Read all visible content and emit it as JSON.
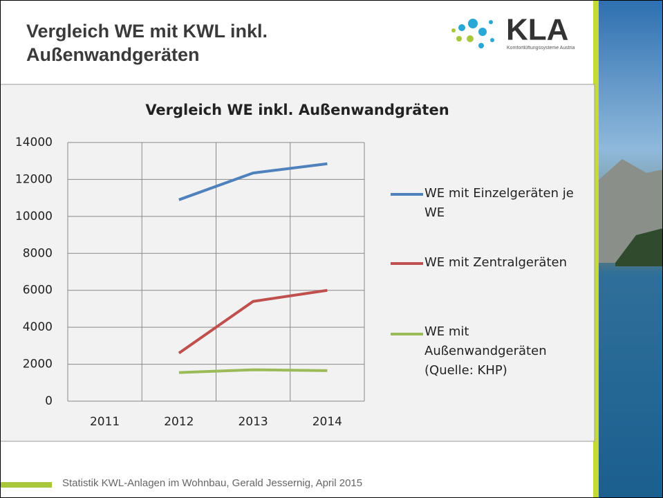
{
  "slide": {
    "title": "Vergleich WE mit KWL inkl. Außenwandgeräten",
    "logo": {
      "name": "KLA",
      "tagline": "Komfortlüftungssysteme Austria"
    },
    "footer": "Statistik KWL-Anlagen im Wohnbau, Gerald Jessernig, April 2015"
  },
  "chart_data": {
    "type": "line",
    "title": "Vergleich WE inkl. Außenwandgräten",
    "categories": [
      "2011",
      "2012",
      "2013",
      "2014"
    ],
    "series": [
      {
        "name": "WE mit Einzelgeräten je WE",
        "color": "#4f81bd",
        "values": [
          null,
          10900,
          12350,
          12850
        ]
      },
      {
        "name": "WE mit Zentralgeräten",
        "color": "#c0504d",
        "values": [
          null,
          2600,
          5400,
          6000
        ]
      },
      {
        "name": "WE mit Außenwandgeräten (Quelle: KHP)",
        "color": "#9bbb59",
        "values": [
          null,
          1550,
          1700,
          1650
        ]
      }
    ],
    "ylim": [
      0,
      14000
    ],
    "yticks": [
      0,
      2000,
      4000,
      6000,
      8000,
      10000,
      12000,
      14000
    ],
    "grid": true,
    "legend": "right"
  }
}
